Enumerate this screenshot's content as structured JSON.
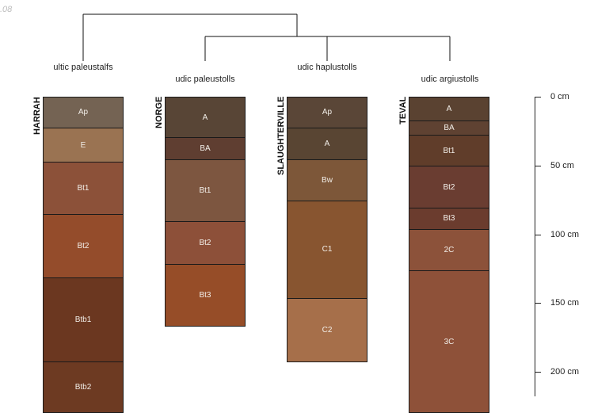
{
  "watermark": ".08",
  "depth_axis": {
    "unit": "cm",
    "ticks": [
      {
        "label": "0 cm",
        "depth": 0
      },
      {
        "label": "50 cm",
        "depth": 50
      },
      {
        "label": "100 cm",
        "depth": 100
      },
      {
        "label": "150 cm",
        "depth": 150
      },
      {
        "label": "200 cm",
        "depth": 200
      }
    ]
  },
  "dendrogram": {
    "groups": [
      [
        "HARRAH"
      ],
      [
        "NORGE",
        "SLAUGHTERVILLE",
        "TEVAL"
      ]
    ]
  },
  "profiles": [
    {
      "name": "HARRAH",
      "taxon": "ultic paleustalfs",
      "horizons": [
        {
          "name": "Ap",
          "top": 0,
          "bottom": 23,
          "color": "#746353"
        },
        {
          "name": "E",
          "top": 23,
          "bottom": 48,
          "color": "#9a7352"
        },
        {
          "name": "Bt1",
          "top": 48,
          "bottom": 86,
          "color": "#8c5139"
        },
        {
          "name": "Bt2",
          "top": 86,
          "bottom": 132,
          "color": "#944c2b"
        },
        {
          "name": "Btb1",
          "top": 132,
          "bottom": 193,
          "color": "#6b3720"
        },
        {
          "name": "Btb2",
          "top": 193,
          "bottom": 230,
          "color": "#6d3a22"
        }
      ]
    },
    {
      "name": "NORGE",
      "taxon": "udic paleustolls",
      "horizons": [
        {
          "name": "A",
          "top": 0,
          "bottom": 30,
          "color": "#584536"
        },
        {
          "name": "BA",
          "top": 30,
          "bottom": 46,
          "color": "#5f3e31"
        },
        {
          "name": "Bt1",
          "top": 46,
          "bottom": 91,
          "color": "#7d5640"
        },
        {
          "name": "Bt2",
          "top": 91,
          "bottom": 122,
          "color": "#8d5039"
        },
        {
          "name": "Bt3",
          "top": 122,
          "bottom": 167,
          "color": "#964d28"
        }
      ]
    },
    {
      "name": "SLAUGHTERVILLE",
      "taxon": "udic haplustolls",
      "horizons": [
        {
          "name": "Ap",
          "top": 0,
          "bottom": 23,
          "color": "#5a4637"
        },
        {
          "name": "A",
          "top": 23,
          "bottom": 46,
          "color": "#594533"
        },
        {
          "name": "Bw",
          "top": 46,
          "bottom": 76,
          "color": "#7d5739"
        },
        {
          "name": "C1",
          "top": 76,
          "bottom": 147,
          "color": "#885530"
        },
        {
          "name": "C2",
          "top": 147,
          "bottom": 193,
          "color": "#a66f4a"
        }
      ]
    },
    {
      "name": "TEVAL",
      "taxon": "udic argiustolls",
      "horizons": [
        {
          "name": "A",
          "top": 0,
          "bottom": 18,
          "color": "#5a4231"
        },
        {
          "name": "BA",
          "top": 18,
          "bottom": 28,
          "color": "#5f4232"
        },
        {
          "name": "Bt1",
          "top": 28,
          "bottom": 51,
          "color": "#603d2a"
        },
        {
          "name": "Bt2",
          "top": 51,
          "bottom": 81,
          "color": "#6a3d31"
        },
        {
          "name": "Bt3",
          "top": 81,
          "bottom": 97,
          "color": "#6b3c2e"
        },
        {
          "name": "2C",
          "top": 97,
          "bottom": 127,
          "color": "#8c523a"
        },
        {
          "name": "3C",
          "top": 127,
          "bottom": 230,
          "color": "#8e5139"
        }
      ]
    }
  ]
}
